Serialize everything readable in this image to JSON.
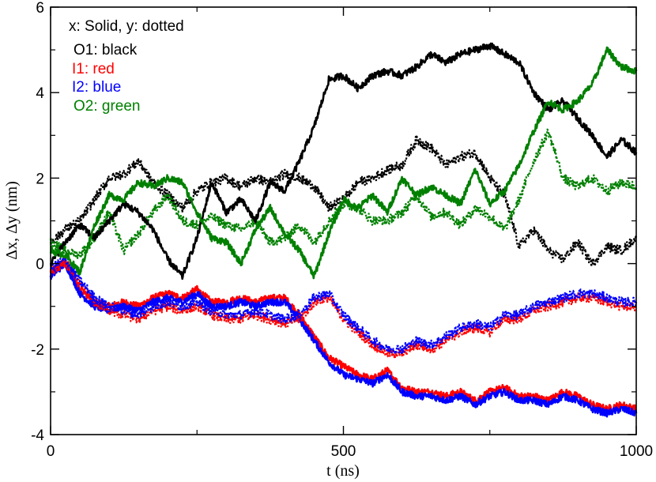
{
  "chart_data": {
    "type": "line",
    "xlabel": "t (ns)",
    "ylabel": "Δx, Δy   (nm)",
    "xlim": [
      0,
      1000
    ],
    "ylim": [
      -4,
      6
    ],
    "xticks": [
      0,
      500,
      1000
    ],
    "yticks": [
      -4,
      -2,
      0,
      2,
      4,
      6
    ],
    "grid": false,
    "legend": {
      "placement": "top-left",
      "entries": [
        {
          "text": "x: Solid, y: dotted",
          "color": "#000000"
        },
        {
          "text": "O1: black",
          "color": "#000000"
        },
        {
          "text": "I1: red",
          "color": "#ff0000"
        },
        {
          "text": "I2: blue",
          "color": "#0000ff"
        },
        {
          "text": "O2: green",
          "color": "#008000"
        }
      ]
    },
    "series": [
      {
        "molecule": "O1",
        "coordinate": "x",
        "style": "solid",
        "color": "#000000",
        "x": [
          0,
          25,
          50,
          75,
          100,
          125,
          150,
          175,
          200,
          225,
          250,
          275,
          300,
          325,
          350,
          375,
          400,
          425,
          450,
          475,
          500,
          525,
          550,
          575,
          600,
          625,
          650,
          675,
          700,
          725,
          750,
          775,
          800,
          825,
          850,
          875,
          900,
          925,
          950,
          975,
          1000
        ],
        "y": [
          0.0,
          0.5,
          0.9,
          0.6,
          1.0,
          1.4,
          1.2,
          0.8,
          0.1,
          -0.3,
          0.6,
          1.9,
          1.2,
          1.5,
          1.0,
          1.9,
          1.7,
          2.4,
          3.2,
          4.3,
          4.4,
          4.1,
          4.4,
          4.5,
          4.4,
          4.6,
          4.9,
          4.7,
          4.9,
          5.0,
          5.1,
          4.9,
          4.7,
          4.0,
          3.6,
          3.8,
          3.4,
          3.0,
          2.5,
          2.9,
          2.6
        ]
      },
      {
        "molecule": "O1",
        "coordinate": "y",
        "style": "dotted",
        "color": "#000000",
        "x": [
          0,
          25,
          50,
          75,
          100,
          125,
          150,
          175,
          200,
          225,
          250,
          275,
          300,
          325,
          350,
          375,
          400,
          425,
          450,
          475,
          500,
          525,
          550,
          575,
          600,
          625,
          650,
          675,
          700,
          725,
          750,
          775,
          800,
          825,
          850,
          875,
          900,
          925,
          950,
          975,
          1000
        ],
        "y": [
          0.5,
          0.8,
          1.0,
          1.5,
          2.0,
          2.1,
          2.4,
          1.9,
          1.6,
          1.3,
          1.7,
          1.9,
          2.0,
          1.8,
          2.0,
          1.9,
          2.1,
          2.0,
          1.8,
          1.3,
          1.5,
          1.9,
          2.0,
          2.2,
          2.3,
          2.9,
          2.7,
          2.3,
          2.5,
          2.6,
          2.0,
          1.6,
          0.4,
          0.8,
          0.3,
          0.1,
          0.5,
          0.0,
          0.4,
          0.3,
          0.6
        ]
      },
      {
        "molecule": "O2",
        "coordinate": "x",
        "style": "solid",
        "color": "#008000",
        "x": [
          0,
          25,
          50,
          75,
          100,
          125,
          150,
          175,
          200,
          225,
          250,
          275,
          300,
          325,
          350,
          375,
          400,
          425,
          450,
          475,
          500,
          525,
          550,
          575,
          600,
          625,
          650,
          675,
          700,
          725,
          750,
          775,
          800,
          825,
          850,
          875,
          900,
          925,
          950,
          975,
          1000
        ],
        "y": [
          0.3,
          0.2,
          -0.2,
          0.9,
          1.6,
          1.5,
          1.9,
          1.8,
          2.0,
          1.9,
          1.2,
          0.6,
          0.5,
          0.0,
          0.8,
          1.3,
          0.7,
          0.3,
          -0.3,
          0.7,
          1.5,
          1.3,
          1.6,
          1.2,
          2.0,
          1.6,
          1.8,
          1.6,
          1.4,
          2.2,
          1.4,
          1.7,
          2.3,
          3.1,
          3.8,
          3.6,
          3.8,
          4.2,
          5.0,
          4.6,
          4.5
        ]
      },
      {
        "molecule": "O2",
        "coordinate": "y",
        "style": "dotted",
        "color": "#008000",
        "x": [
          0,
          25,
          50,
          75,
          100,
          125,
          150,
          175,
          200,
          225,
          250,
          275,
          300,
          325,
          350,
          375,
          400,
          425,
          450,
          475,
          500,
          525,
          550,
          575,
          600,
          625,
          650,
          675,
          700,
          725,
          750,
          775,
          800,
          825,
          850,
          875,
          900,
          925,
          950,
          975,
          1000
        ],
        "y": [
          0.5,
          0.3,
          0.2,
          0.6,
          1.2,
          0.3,
          0.7,
          1.2,
          1.6,
          1.0,
          0.9,
          1.1,
          0.9,
          0.8,
          1.0,
          0.5,
          0.6,
          0.9,
          0.5,
          1.0,
          1.4,
          1.3,
          1.0,
          1.0,
          1.2,
          1.6,
          1.1,
          1.2,
          0.9,
          1.3,
          1.1,
          0.8,
          1.5,
          2.4,
          3.1,
          2.0,
          1.8,
          2.0,
          1.7,
          1.9,
          1.8
        ]
      },
      {
        "molecule": "I1",
        "coordinate": "x",
        "style": "solid",
        "color": "#ff0000",
        "x": [
          0,
          25,
          50,
          75,
          100,
          125,
          150,
          175,
          200,
          225,
          250,
          275,
          300,
          325,
          350,
          375,
          400,
          425,
          450,
          475,
          500,
          525,
          550,
          575,
          600,
          625,
          650,
          675,
          700,
          725,
          750,
          775,
          800,
          825,
          850,
          875,
          900,
          925,
          950,
          975,
          1000
        ],
        "y": [
          -0.2,
          0.1,
          -0.6,
          -0.9,
          -1.0,
          -0.9,
          -1.0,
          -0.8,
          -0.7,
          -0.8,
          -0.6,
          -0.9,
          -0.9,
          -0.8,
          -0.9,
          -0.8,
          -0.8,
          -1.2,
          -1.7,
          -2.2,
          -2.4,
          -2.6,
          -2.7,
          -2.5,
          -2.9,
          -3.0,
          -3.0,
          -3.1,
          -3.0,
          -3.2,
          -3.0,
          -2.9,
          -3.1,
          -3.1,
          -3.2,
          -3.0,
          -3.1,
          -3.3,
          -3.4,
          -3.3,
          -3.4
        ]
      },
      {
        "molecule": "I1",
        "coordinate": "y",
        "style": "dotted",
        "color": "#ff0000",
        "x": [
          0,
          25,
          50,
          75,
          100,
          125,
          150,
          175,
          200,
          225,
          250,
          275,
          300,
          325,
          350,
          375,
          400,
          425,
          450,
          475,
          500,
          525,
          550,
          575,
          600,
          625,
          650,
          675,
          700,
          725,
          750,
          775,
          800,
          825,
          850,
          875,
          900,
          925,
          950,
          975,
          1000
        ],
        "y": [
          -0.2,
          0.0,
          -0.5,
          -0.9,
          -1.1,
          -1.2,
          -1.3,
          -1.1,
          -1.0,
          -1.1,
          -1.0,
          -1.2,
          -1.3,
          -1.3,
          -1.2,
          -1.3,
          -1.4,
          -1.3,
          -0.9,
          -0.8,
          -1.3,
          -1.6,
          -1.9,
          -2.1,
          -2.1,
          -1.9,
          -2.0,
          -1.8,
          -1.6,
          -1.5,
          -1.6,
          -1.3,
          -1.3,
          -1.1,
          -1.0,
          -0.9,
          -0.8,
          -0.8,
          -0.9,
          -1.0,
          -1.0
        ]
      },
      {
        "molecule": "I2",
        "coordinate": "x",
        "style": "solid",
        "color": "#0000ff",
        "x": [
          0,
          25,
          50,
          75,
          100,
          125,
          150,
          175,
          200,
          225,
          250,
          275,
          300,
          325,
          350,
          375,
          400,
          425,
          450,
          475,
          500,
          525,
          550,
          575,
          600,
          625,
          650,
          675,
          700,
          725,
          750,
          775,
          800,
          825,
          850,
          875,
          900,
          925,
          950,
          975,
          1000
        ],
        "y": [
          -0.3,
          0.0,
          -0.7,
          -1.0,
          -1.1,
          -1.0,
          -1.1,
          -0.9,
          -0.8,
          -0.9,
          -0.7,
          -1.0,
          -1.0,
          -0.9,
          -1.0,
          -0.9,
          -0.9,
          -1.3,
          -1.8,
          -2.3,
          -2.6,
          -2.7,
          -2.8,
          -2.6,
          -3.0,
          -3.1,
          -3.1,
          -3.2,
          -3.1,
          -3.3,
          -3.1,
          -3.0,
          -3.2,
          -3.2,
          -3.3,
          -3.1,
          -3.2,
          -3.4,
          -3.5,
          -3.4,
          -3.5
        ]
      },
      {
        "molecule": "I2",
        "coordinate": "y",
        "style": "dotted",
        "color": "#0000ff",
        "x": [
          0,
          25,
          50,
          75,
          100,
          125,
          150,
          175,
          200,
          225,
          250,
          275,
          300,
          325,
          350,
          375,
          400,
          425,
          450,
          475,
          500,
          525,
          550,
          575,
          600,
          625,
          650,
          675,
          700,
          725,
          750,
          775,
          800,
          825,
          850,
          875,
          900,
          925,
          950,
          975,
          1000
        ],
        "y": [
          -0.1,
          0.1,
          -0.4,
          -0.8,
          -1.0,
          -1.1,
          -1.2,
          -1.0,
          -0.9,
          -1.0,
          -0.9,
          -1.1,
          -1.2,
          -1.2,
          -1.1,
          -1.2,
          -1.3,
          -1.2,
          -0.8,
          -0.7,
          -1.2,
          -1.5,
          -1.8,
          -2.0,
          -2.0,
          -1.8,
          -1.9,
          -1.7,
          -1.5,
          -1.4,
          -1.5,
          -1.2,
          -1.2,
          -1.0,
          -0.9,
          -0.8,
          -0.7,
          -0.7,
          -0.8,
          -0.9,
          -0.9
        ]
      }
    ]
  }
}
